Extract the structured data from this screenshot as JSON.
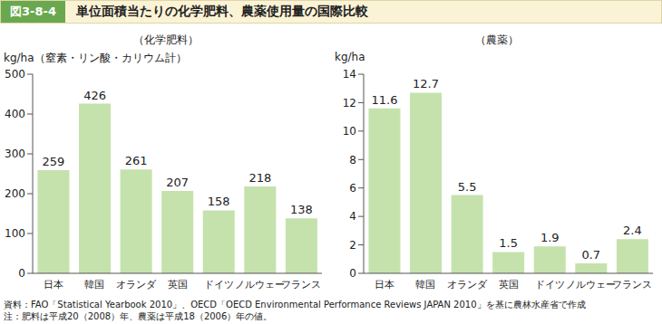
{
  "figure": "図3-8-4",
  "title": "単位面積当たりの化学肥料、農薬使用量の国際比較",
  "chart_data": [
    {
      "type": "bar",
      "title": "（化学肥料）",
      "y_label": "kg/ha（窒素・リン酸・カリウム計）",
      "categories": [
        "日本",
        "韓国",
        "オランダ",
        "英国",
        "ドイツ",
        "ノルウェー",
        "フランス"
      ],
      "values": [
        259,
        426,
        261,
        207,
        158,
        218,
        138
      ],
      "color": "#c5e2ad",
      "ylim": [
        0,
        500
      ],
      "yticks": [
        0,
        100,
        200,
        300,
        400,
        500
      ],
      "data_labels": true,
      "grid": false
    },
    {
      "type": "bar",
      "title": "（農薬）",
      "y_label": "kg/ha",
      "categories": [
        "日本",
        "韓国",
        "オランダ",
        "英国",
        "ドイツ",
        "ノルウェー",
        "フランス"
      ],
      "values": [
        11.6,
        12.7,
        5.5,
        1.5,
        1.9,
        0.7,
        2.4
      ],
      "color": "#c5e2ad",
      "ylim": [
        0,
        14
      ],
      "yticks": [
        0,
        2,
        4,
        6,
        8,
        10,
        12,
        14
      ],
      "data_labels": true,
      "grid": false
    }
  ],
  "source": "資料：FAO「Statistical Yearbook 2010」、OECD「OECD Environmental Performance Reviews JAPAN 2010」を基に農林水産省で作成",
  "note": "注：肥料は平成20（2008）年、農薬は平成18（2006）年の値。"
}
